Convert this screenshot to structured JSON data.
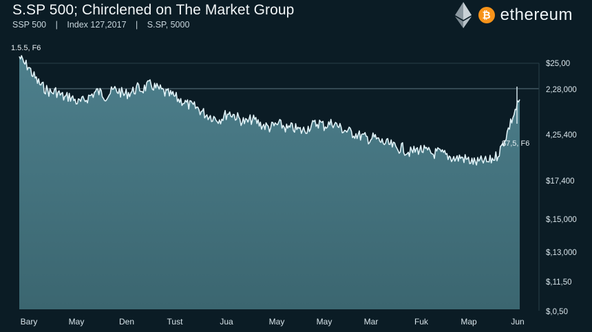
{
  "header": {
    "title": "S.SP 500; Chirclened on The Market Group",
    "subtitle_items": [
      "SSP 500",
      "|",
      "Index 127,2017",
      "|",
      "S.SP, 5000"
    ]
  },
  "brand": {
    "bitcoin_symbol": "₿",
    "name": "ethereum",
    "icons": [
      "ethereum-icon",
      "bitcoin-icon"
    ],
    "bitcoin_color": "#f7931a"
  },
  "chart_data": {
    "type": "area",
    "series_color": "#dff1f6",
    "fill_top": "#4d7f8c",
    "fill_bottom": "#3b6670",
    "y_tick_labels": [
      "$25,00",
      "2,28,000",
      "4,25,400",
      "$17,400",
      "$,15,000",
      "$,13,000",
      "$,11,50",
      "$,0,50"
    ],
    "x_tick_labels": [
      "Bary",
      "May",
      "Den",
      "Tust",
      "Jua",
      "May",
      "May",
      "Mar",
      "Fuk",
      "Map",
      "Jun"
    ],
    "annotations": {
      "start_label": "1.5.5, F6",
      "end_label": "$7,5, F6"
    },
    "ylim": [
      0,
      1
    ],
    "values": [
      0.99,
      0.95,
      0.93,
      0.88,
      0.84,
      0.81,
      0.79,
      0.77,
      0.78,
      0.76,
      0.74,
      0.75,
      0.73,
      0.71,
      0.72,
      0.74,
      0.76,
      0.78,
      0.77,
      0.75,
      0.77,
      0.79,
      0.78,
      0.76,
      0.77,
      0.78,
      0.8,
      0.79,
      0.81,
      0.82,
      0.8,
      0.79,
      0.77,
      0.76,
      0.75,
      0.73,
      0.72,
      0.7,
      0.69,
      0.68,
      0.66,
      0.64,
      0.63,
      0.62,
      0.61,
      0.63,
      0.65,
      0.64,
      0.62,
      0.6,
      0.59,
      0.61,
      0.6,
      0.58,
      0.57,
      0.56,
      0.57,
      0.58,
      0.57,
      0.55,
      0.56,
      0.55,
      0.54,
      0.55,
      0.57,
      0.58,
      0.59,
      0.57,
      0.58,
      0.59,
      0.57,
      0.55,
      0.54,
      0.53,
      0.52,
      0.51,
      0.5,
      0.49,
      0.5,
      0.48,
      0.47,
      0.46,
      0.45,
      0.43,
      0.44,
      0.42,
      0.41,
      0.42,
      0.43,
      0.42,
      0.41,
      0.4,
      0.41,
      0.4,
      0.39,
      0.38,
      0.37,
      0.38,
      0.37,
      0.36,
      0.35,
      0.35,
      0.36,
      0.35,
      0.37,
      0.39,
      0.44,
      0.51,
      0.59,
      0.66,
      0.73
    ]
  }
}
